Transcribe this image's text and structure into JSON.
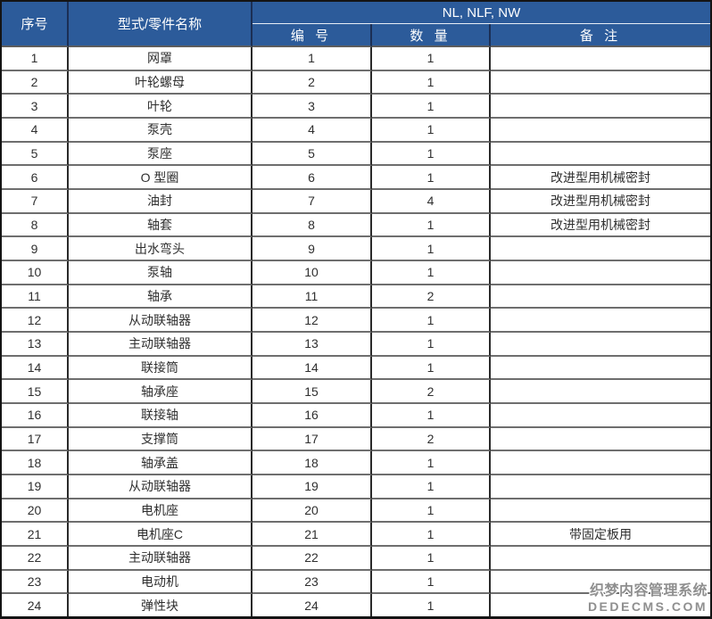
{
  "table": {
    "header": {
      "col_serial": "序号",
      "col_name": "型式/零件名称",
      "group": "NL, NLF, NW",
      "col_number": "编 号",
      "col_qty": "数 量",
      "col_remark": "备 注"
    },
    "rows": [
      {
        "serial": "1",
        "name": "网罩",
        "number": "1",
        "qty": "1",
        "remark": ""
      },
      {
        "serial": "2",
        "name": "叶轮螺母",
        "number": "2",
        "qty": "1",
        "remark": ""
      },
      {
        "serial": "3",
        "name": "叶轮",
        "number": "3",
        "qty": "1",
        "remark": ""
      },
      {
        "serial": "4",
        "name": "泵壳",
        "number": "4",
        "qty": "1",
        "remark": ""
      },
      {
        "serial": "5",
        "name": "泵座",
        "number": "5",
        "qty": "1",
        "remark": ""
      },
      {
        "serial": "6",
        "name": "O 型圈",
        "number": "6",
        "qty": "1",
        "remark": "改进型用机械密封"
      },
      {
        "serial": "7",
        "name": "油封",
        "number": "7",
        "qty": "4",
        "remark": "改进型用机械密封"
      },
      {
        "serial": "8",
        "name": "轴套",
        "number": "8",
        "qty": "1",
        "remark": "改进型用机械密封"
      },
      {
        "serial": "9",
        "name": "出水弯头",
        "number": "9",
        "qty": "1",
        "remark": ""
      },
      {
        "serial": "10",
        "name": "泵轴",
        "number": "10",
        "qty": "1",
        "remark": ""
      },
      {
        "serial": "11",
        "name": "轴承",
        "number": "11",
        "qty": "2",
        "remark": ""
      },
      {
        "serial": "12",
        "name": "从动联轴器",
        "number": "12",
        "qty": "1",
        "remark": ""
      },
      {
        "serial": "13",
        "name": "主动联轴器",
        "number": "13",
        "qty": "1",
        "remark": ""
      },
      {
        "serial": "14",
        "name": "联接筒",
        "number": "14",
        "qty": "1",
        "remark": ""
      },
      {
        "serial": "15",
        "name": "轴承座",
        "number": "15",
        "qty": "2",
        "remark": ""
      },
      {
        "serial": "16",
        "name": "联接轴",
        "number": "16",
        "qty": "1",
        "remark": ""
      },
      {
        "serial": "17",
        "name": "支撑筒",
        "number": "17",
        "qty": "2",
        "remark": ""
      },
      {
        "serial": "18",
        "name": "轴承盖",
        "number": "18",
        "qty": "1",
        "remark": ""
      },
      {
        "serial": "19",
        "name": "从动联轴器",
        "number": "19",
        "qty": "1",
        "remark": ""
      },
      {
        "serial": "20",
        "name": "电机座",
        "number": "20",
        "qty": "1",
        "remark": ""
      },
      {
        "serial": "21",
        "name": "电机座C",
        "number": "21",
        "qty": "1",
        "remark": "带固定板用"
      },
      {
        "serial": "22",
        "name": "主动联轴器",
        "number": "22",
        "qty": "1",
        "remark": ""
      },
      {
        "serial": "23",
        "name": "电动机",
        "number": "23",
        "qty": "1",
        "remark": ""
      },
      {
        "serial": "24",
        "name": "弹性块",
        "number": "24",
        "qty": "1",
        "remark": ""
      }
    ]
  },
  "watermark": {
    "line1": "织梦内容管理系统",
    "line2": "DEDECMS.COM"
  },
  "colors": {
    "header_bg": "#2c5b9a",
    "header_text": "#ffffff",
    "body_text": "#2f2f2f",
    "vertical_border": "#2a2a2a",
    "horizontal_border": "#6e6e6e",
    "outer_border": "#141414",
    "watermark_text": "#8f8f8f"
  }
}
